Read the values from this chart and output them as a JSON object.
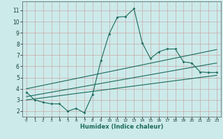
{
  "xlabel": "Humidex (Indice chaleur)",
  "bg_color": "#cceaea",
  "grid_color": "#c8aaaa",
  "line_color": "#1a6b5a",
  "xlim": [
    -0.5,
    23.5
  ],
  "ylim": [
    1.5,
    11.8
  ],
  "xticks": [
    0,
    1,
    2,
    3,
    4,
    5,
    6,
    7,
    8,
    9,
    10,
    11,
    12,
    13,
    14,
    15,
    16,
    17,
    18,
    19,
    20,
    21,
    22,
    23
  ],
  "yticks": [
    2,
    3,
    4,
    5,
    6,
    7,
    8,
    9,
    10,
    11
  ],
  "main_x": [
    0,
    1,
    2,
    3,
    4,
    5,
    6,
    7,
    8,
    9,
    10,
    11,
    12,
    13,
    14,
    15,
    16,
    17,
    18,
    19,
    20,
    21,
    22,
    23
  ],
  "main_y": [
    3.7,
    3.0,
    2.8,
    2.65,
    2.65,
    2.0,
    2.25,
    1.85,
    3.5,
    6.5,
    8.9,
    10.4,
    10.45,
    11.15,
    8.1,
    6.7,
    7.3,
    7.55,
    7.55,
    6.4,
    6.3,
    5.5,
    5.45,
    5.45
  ],
  "line1_x": [
    0,
    23
  ],
  "line1_y": [
    3.3,
    6.3
  ],
  "line2_x": [
    0,
    23
  ],
  "line2_y": [
    3.0,
    5.2
  ],
  "line3_x": [
    0,
    23
  ],
  "line3_y": [
    4.0,
    7.5
  ]
}
